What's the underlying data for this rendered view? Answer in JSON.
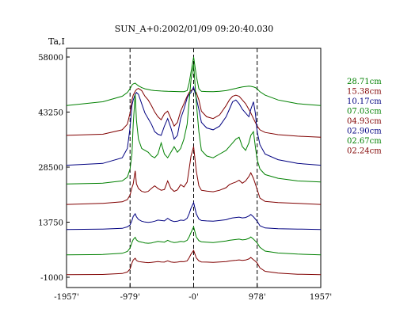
{
  "chart_data": {
    "type": "line",
    "title": "SUN_A+0:2002/01/09 09:20:40.030",
    "ylabel": "Ta,I",
    "xlabel": "",
    "x_ticks": [
      "-1957'",
      "-979'",
      "-0'",
      "978'",
      "1957'"
    ],
    "x_tick_values": [
      -1957,
      -979,
      0,
      978,
      1957
    ],
    "y_ticks": [
      "58000",
      "43250",
      "28500",
      "13750",
      "-1000"
    ],
    "y_tick_values": [
      58000,
      43250,
      28500,
      13750,
      -1000
    ],
    "xlim": [
      -1957,
      1957
    ],
    "ylim": [
      -1000,
      58000
    ],
    "reference_lines_x": [
      -979,
      0,
      978
    ],
    "grid": false,
    "legend_position": "right",
    "x": [
      -1957,
      -1400,
      -1100,
      -1020,
      -979,
      -950,
      -930,
      -900,
      -880,
      -850,
      -800,
      -750,
      -700,
      -650,
      -600,
      -550,
      -500,
      -450,
      -400,
      -350,
      -300,
      -250,
      -200,
      -150,
      -100,
      -70,
      -40,
      0,
      40,
      80,
      120,
      200,
      300,
      400,
      500,
      550,
      600,
      650,
      700,
      750,
      800,
      850,
      880,
      920,
      950,
      978,
      1020,
      1100,
      1300,
      1600,
      1957
    ],
    "series": [
      {
        "name": "28.71cm",
        "color": "#008000",
        "values": [
          45000,
          46000,
          47500,
          48500,
          49500,
          50500,
          50800,
          51000,
          50700,
          50300,
          49800,
          49500,
          49300,
          49100,
          49000,
          48950,
          48900,
          48850,
          48800,
          48780,
          48760,
          48740,
          48730,
          48720,
          49000,
          51000,
          54000,
          58000,
          53000,
          49500,
          48800,
          48750,
          48700,
          48800,
          49000,
          49200,
          49400,
          49600,
          49800,
          50000,
          50100,
          50200,
          50150,
          50000,
          49800,
          49500,
          48700,
          47800,
          46500,
          45500,
          45000
        ]
      },
      {
        "name": "15.38cm",
        "color": "#800000",
        "values": [
          37000,
          37300,
          38500,
          40000,
          43000,
          46500,
          47800,
          48800,
          49300,
          49600,
          49000,
          47500,
          46500,
          45000,
          43300,
          42000,
          41200,
          42800,
          43500,
          41500,
          39500,
          40500,
          43500,
          45500,
          47500,
          48500,
          49000,
          49500,
          48500,
          46500,
          43500,
          42000,
          41500,
          42500,
          45000,
          46500,
          47500,
          47800,
          47500,
          46500,
          45500,
          44000,
          43000,
          41500,
          40500,
          39500,
          38500,
          37800,
          37200,
          36800,
          36500
        ]
      },
      {
        "name": "10.17cm",
        "color": "#000080",
        "values": [
          29000,
          29500,
          31000,
          33500,
          39000,
          45000,
          46500,
          48000,
          48500,
          48000,
          45500,
          43000,
          41500,
          40000,
          38000,
          37300,
          37000,
          39500,
          41500,
          39000,
          36000,
          37000,
          41500,
          44000,
          47000,
          48000,
          48500,
          50000,
          47000,
          44000,
          40500,
          39000,
          38500,
          39500,
          42000,
          44000,
          46000,
          46500,
          45500,
          44000,
          43000,
          42000,
          44000,
          46000,
          43000,
          38000,
          34500,
          32000,
          30500,
          29500,
          29000
        ]
      },
      {
        "name": "07.03cm",
        "color": "#008000",
        "values": [
          24000,
          24200,
          24800,
          25800,
          28000,
          32000,
          40000,
          48000,
          41000,
          36000,
          33500,
          33000,
          32500,
          31500,
          31000,
          32000,
          35000,
          32000,
          31000,
          32500,
          34000,
          32500,
          33500,
          36000,
          40000,
          46000,
          52000,
          56000,
          46000,
          38000,
          33000,
          31500,
          31000,
          32000,
          33000,
          34000,
          35000,
          36000,
          36500,
          34000,
          33000,
          35000,
          37000,
          38000,
          34000,
          30500,
          28000,
          26500,
          25500,
          24800,
          24500
        ]
      },
      {
        "name": "04.93cm",
        "color": "#800000",
        "values": [
          18500,
          18800,
          19200,
          19800,
          21000,
          23000,
          24000,
          27500,
          24000,
          22800,
          22000,
          21800,
          22000,
          22800,
          23500,
          22800,
          22300,
          22500,
          24800,
          22800,
          22000,
          22400,
          23800,
          23200,
          24500,
          28000,
          31500,
          34000,
          27500,
          23500,
          22300,
          22100,
          21900,
          22300,
          23000,
          23800,
          24200,
          24500,
          25000,
          24200,
          24800,
          26000,
          27000,
          25500,
          24000,
          22500,
          20200,
          19300,
          19000,
          18800,
          18500
        ]
      },
      {
        "name": "02.90cm",
        "color": "#000080",
        "values": [
          11800,
          11900,
          12100,
          12500,
          13000,
          14200,
          15300,
          16000,
          15200,
          14500,
          14000,
          13800,
          13700,
          13800,
          14000,
          14300,
          14200,
          14100,
          14800,
          14200,
          13900,
          14000,
          14300,
          14200,
          14800,
          16000,
          17500,
          19000,
          16000,
          14600,
          14200,
          14100,
          14000,
          14200,
          14400,
          14700,
          14900,
          15000,
          15100,
          14900,
          15000,
          15400,
          15800,
          15200,
          14600,
          14000,
          12800,
          12200,
          12000,
          11900,
          11800
        ]
      },
      {
        "name": "02.67cm",
        "color": "#008000",
        "values": [
          5000,
          5100,
          5400,
          5900,
          6800,
          8300,
          9100,
          9700,
          9000,
          8600,
          8400,
          8200,
          8100,
          8200,
          8400,
          8600,
          8500,
          8400,
          8900,
          8500,
          8300,
          8400,
          8600,
          8500,
          8900,
          9800,
          11000,
          12500,
          9800,
          8800,
          8500,
          8400,
          8300,
          8500,
          8700,
          8900,
          9000,
          9100,
          9200,
          9000,
          9100,
          9400,
          9800,
          9200,
          8700,
          8200,
          7000,
          6000,
          5500,
          5200,
          5000
        ]
      },
      {
        "name": "02.24cm",
        "color": "#800000",
        "values": [
          -300,
          -250,
          0,
          400,
          1200,
          2800,
          3600,
          4100,
          3500,
          3200,
          3100,
          3000,
          2900,
          3000,
          3100,
          3200,
          3100,
          3050,
          3400,
          3100,
          3000,
          3050,
          3200,
          3150,
          3400,
          4200,
          5200,
          6200,
          4200,
          3400,
          3100,
          3050,
          3000,
          3100,
          3200,
          3350,
          3450,
          3550,
          3650,
          3500,
          3600,
          3900,
          4300,
          3700,
          3300,
          2800,
          1500,
          600,
          100,
          -200,
          -300
        ]
      }
    ]
  }
}
